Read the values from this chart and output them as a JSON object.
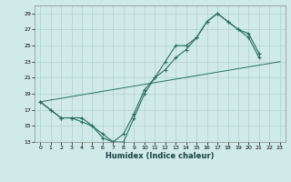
{
  "xlabel": "Humidex (Indice chaleur)",
  "bg_color": "#d0eaea",
  "grid_color": "#b0d0d0",
  "line_color": "#2a6e60",
  "xlim": [
    -0.5,
    23.5
  ],
  "ylim": [
    13,
    30
  ],
  "xticks": [
    0,
    1,
    2,
    3,
    4,
    5,
    6,
    7,
    8,
    9,
    10,
    11,
    12,
    13,
    14,
    15,
    16,
    17,
    18,
    19,
    20,
    21,
    22,
    23
  ],
  "yticks": [
    13,
    15,
    17,
    19,
    21,
    23,
    25,
    27,
    29
  ],
  "curve1_x": [
    0,
    1,
    2,
    3,
    4,
    5,
    6,
    7,
    8,
    9,
    10,
    11,
    12,
    13,
    14,
    15,
    16,
    17,
    18,
    19,
    20,
    21
  ],
  "curve1_y": [
    18,
    17,
    16,
    16,
    16,
    15,
    14,
    13,
    13,
    16,
    19,
    21,
    23,
    25,
    25,
    26,
    28,
    29,
    28,
    27,
    26.5,
    24
  ],
  "curve2_x": [
    0,
    1,
    2,
    3,
    4,
    5,
    6,
    7,
    8,
    9,
    10,
    11,
    12,
    13,
    14,
    15,
    16,
    17,
    18,
    19,
    20,
    21
  ],
  "curve2_y": [
    18,
    17,
    16,
    16,
    15.5,
    15,
    13.5,
    13,
    14,
    16.5,
    19.5,
    21,
    22,
    23.5,
    24.5,
    26,
    28,
    29,
    28,
    27,
    26,
    23.5
  ],
  "line3_x": [
    0,
    23
  ],
  "line3_y": [
    18,
    23
  ]
}
